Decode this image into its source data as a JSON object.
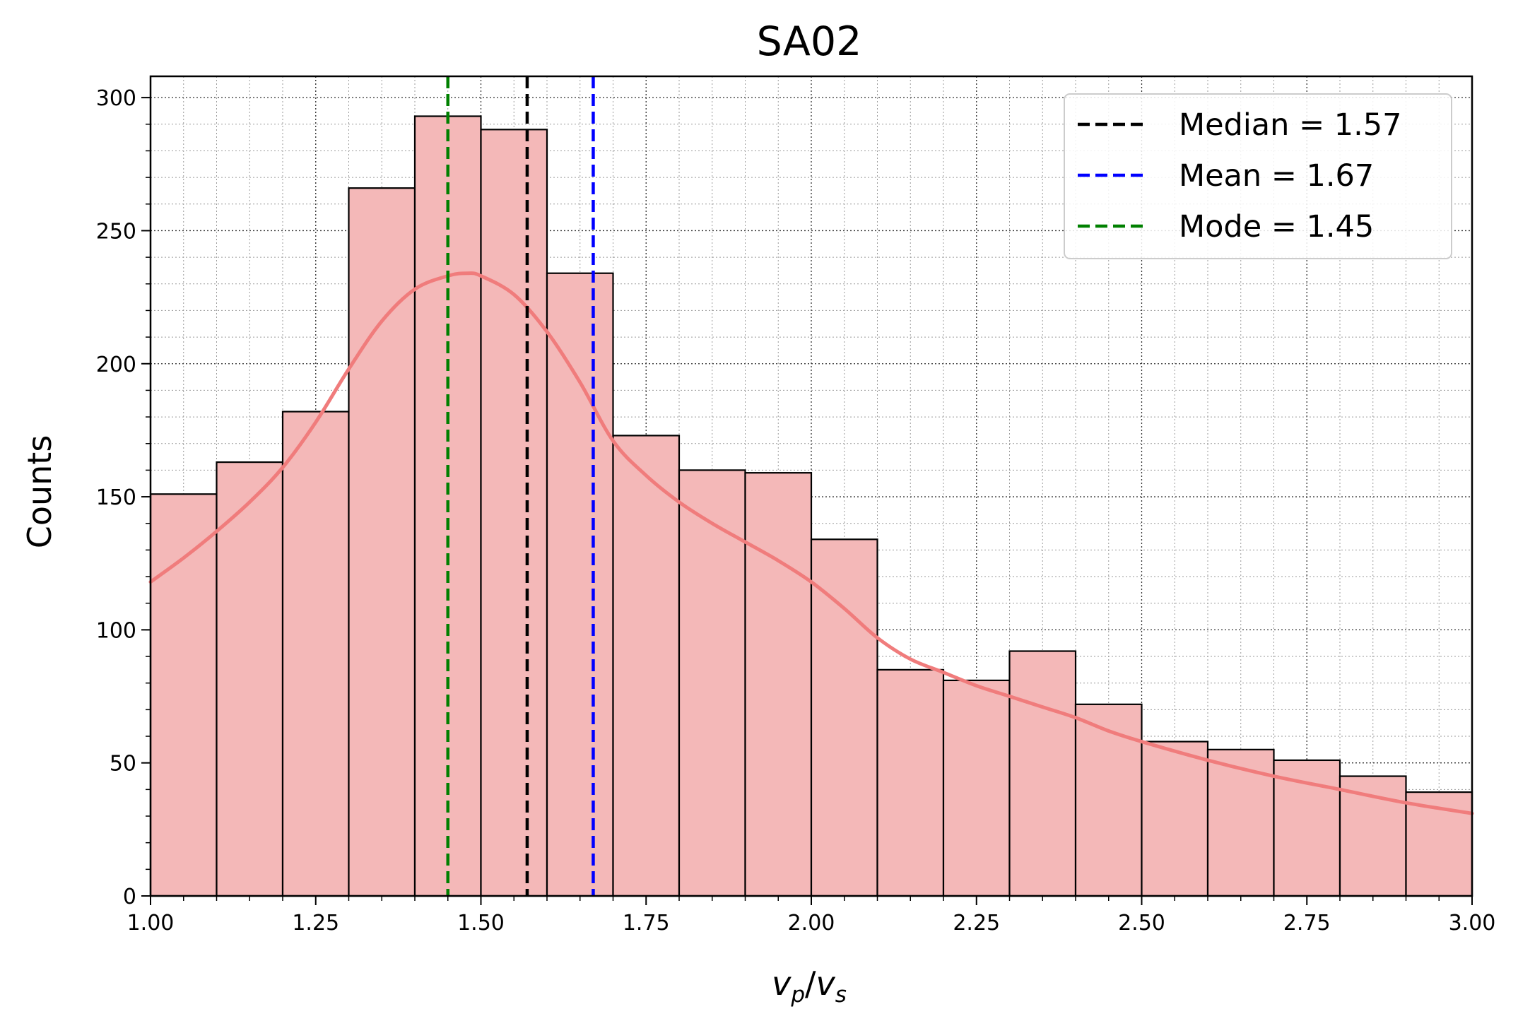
{
  "chart_data": {
    "type": "histogram",
    "title": "SA02",
    "xlabel": {
      "base": "v",
      "sub1": "p",
      "slash": "/",
      "base2": "v",
      "sub2": "s"
    },
    "ylabel": "Counts",
    "xlim": [
      1.0,
      3.0
    ],
    "ylim": [
      0,
      308
    ],
    "x_ticks": [
      1.0,
      1.25,
      1.5,
      1.75,
      2.0,
      2.25,
      2.5,
      2.75,
      3.0
    ],
    "x_tick_labels": [
      "1.00",
      "1.25",
      "1.50",
      "1.75",
      "2.00",
      "2.25",
      "2.50",
      "2.75",
      "3.00"
    ],
    "y_ticks": [
      0,
      50,
      100,
      150,
      200,
      250,
      300
    ],
    "y_tick_labels": [
      "0",
      "50",
      "100",
      "150",
      "200",
      "250",
      "300"
    ],
    "grid": true,
    "legend_position": "top-right",
    "bins": {
      "edges": [
        1.0,
        1.1,
        1.2,
        1.3,
        1.4,
        1.5,
        1.6,
        1.7,
        1.8,
        1.9,
        2.0,
        2.1,
        2.2,
        2.3,
        2.4,
        2.5,
        2.6,
        2.7,
        2.8,
        2.9,
        3.0
      ],
      "counts": [
        151,
        163,
        182,
        266,
        293,
        288,
        234,
        173,
        160,
        159,
        134,
        85,
        81,
        92,
        72,
        58,
        55,
        51,
        45,
        39
      ],
      "fill": "#f4b8b8",
      "edge": "#000000"
    },
    "kde": {
      "color": "#f07c7c",
      "x": [
        1.0,
        1.05,
        1.1,
        1.15,
        1.2,
        1.25,
        1.3,
        1.35,
        1.4,
        1.45,
        1.48,
        1.5,
        1.55,
        1.6,
        1.65,
        1.7,
        1.75,
        1.8,
        1.85,
        1.9,
        1.95,
        2.0,
        2.05,
        2.1,
        2.15,
        2.2,
        2.25,
        2.3,
        2.35,
        2.4,
        2.45,
        2.5,
        2.6,
        2.7,
        2.8,
        2.9,
        3.0
      ],
      "y": [
        118,
        127,
        137,
        148,
        161,
        178,
        198,
        216,
        228,
        233,
        234,
        233,
        226,
        212,
        193,
        171,
        158,
        148,
        140,
        133,
        126,
        118,
        108,
        97,
        89,
        84,
        79,
        75,
        71,
        67,
        62,
        58,
        51,
        45,
        40,
        35,
        31
      ]
    },
    "reference_lines": [
      {
        "name": "Median = 1.57",
        "x": 1.57,
        "color": "#000000"
      },
      {
        "name": "Mean = 1.67",
        "x": 1.67,
        "color": "#0000ff"
      },
      {
        "name": "Mode = 1.45",
        "x": 1.45,
        "color": "#008000"
      }
    ]
  }
}
